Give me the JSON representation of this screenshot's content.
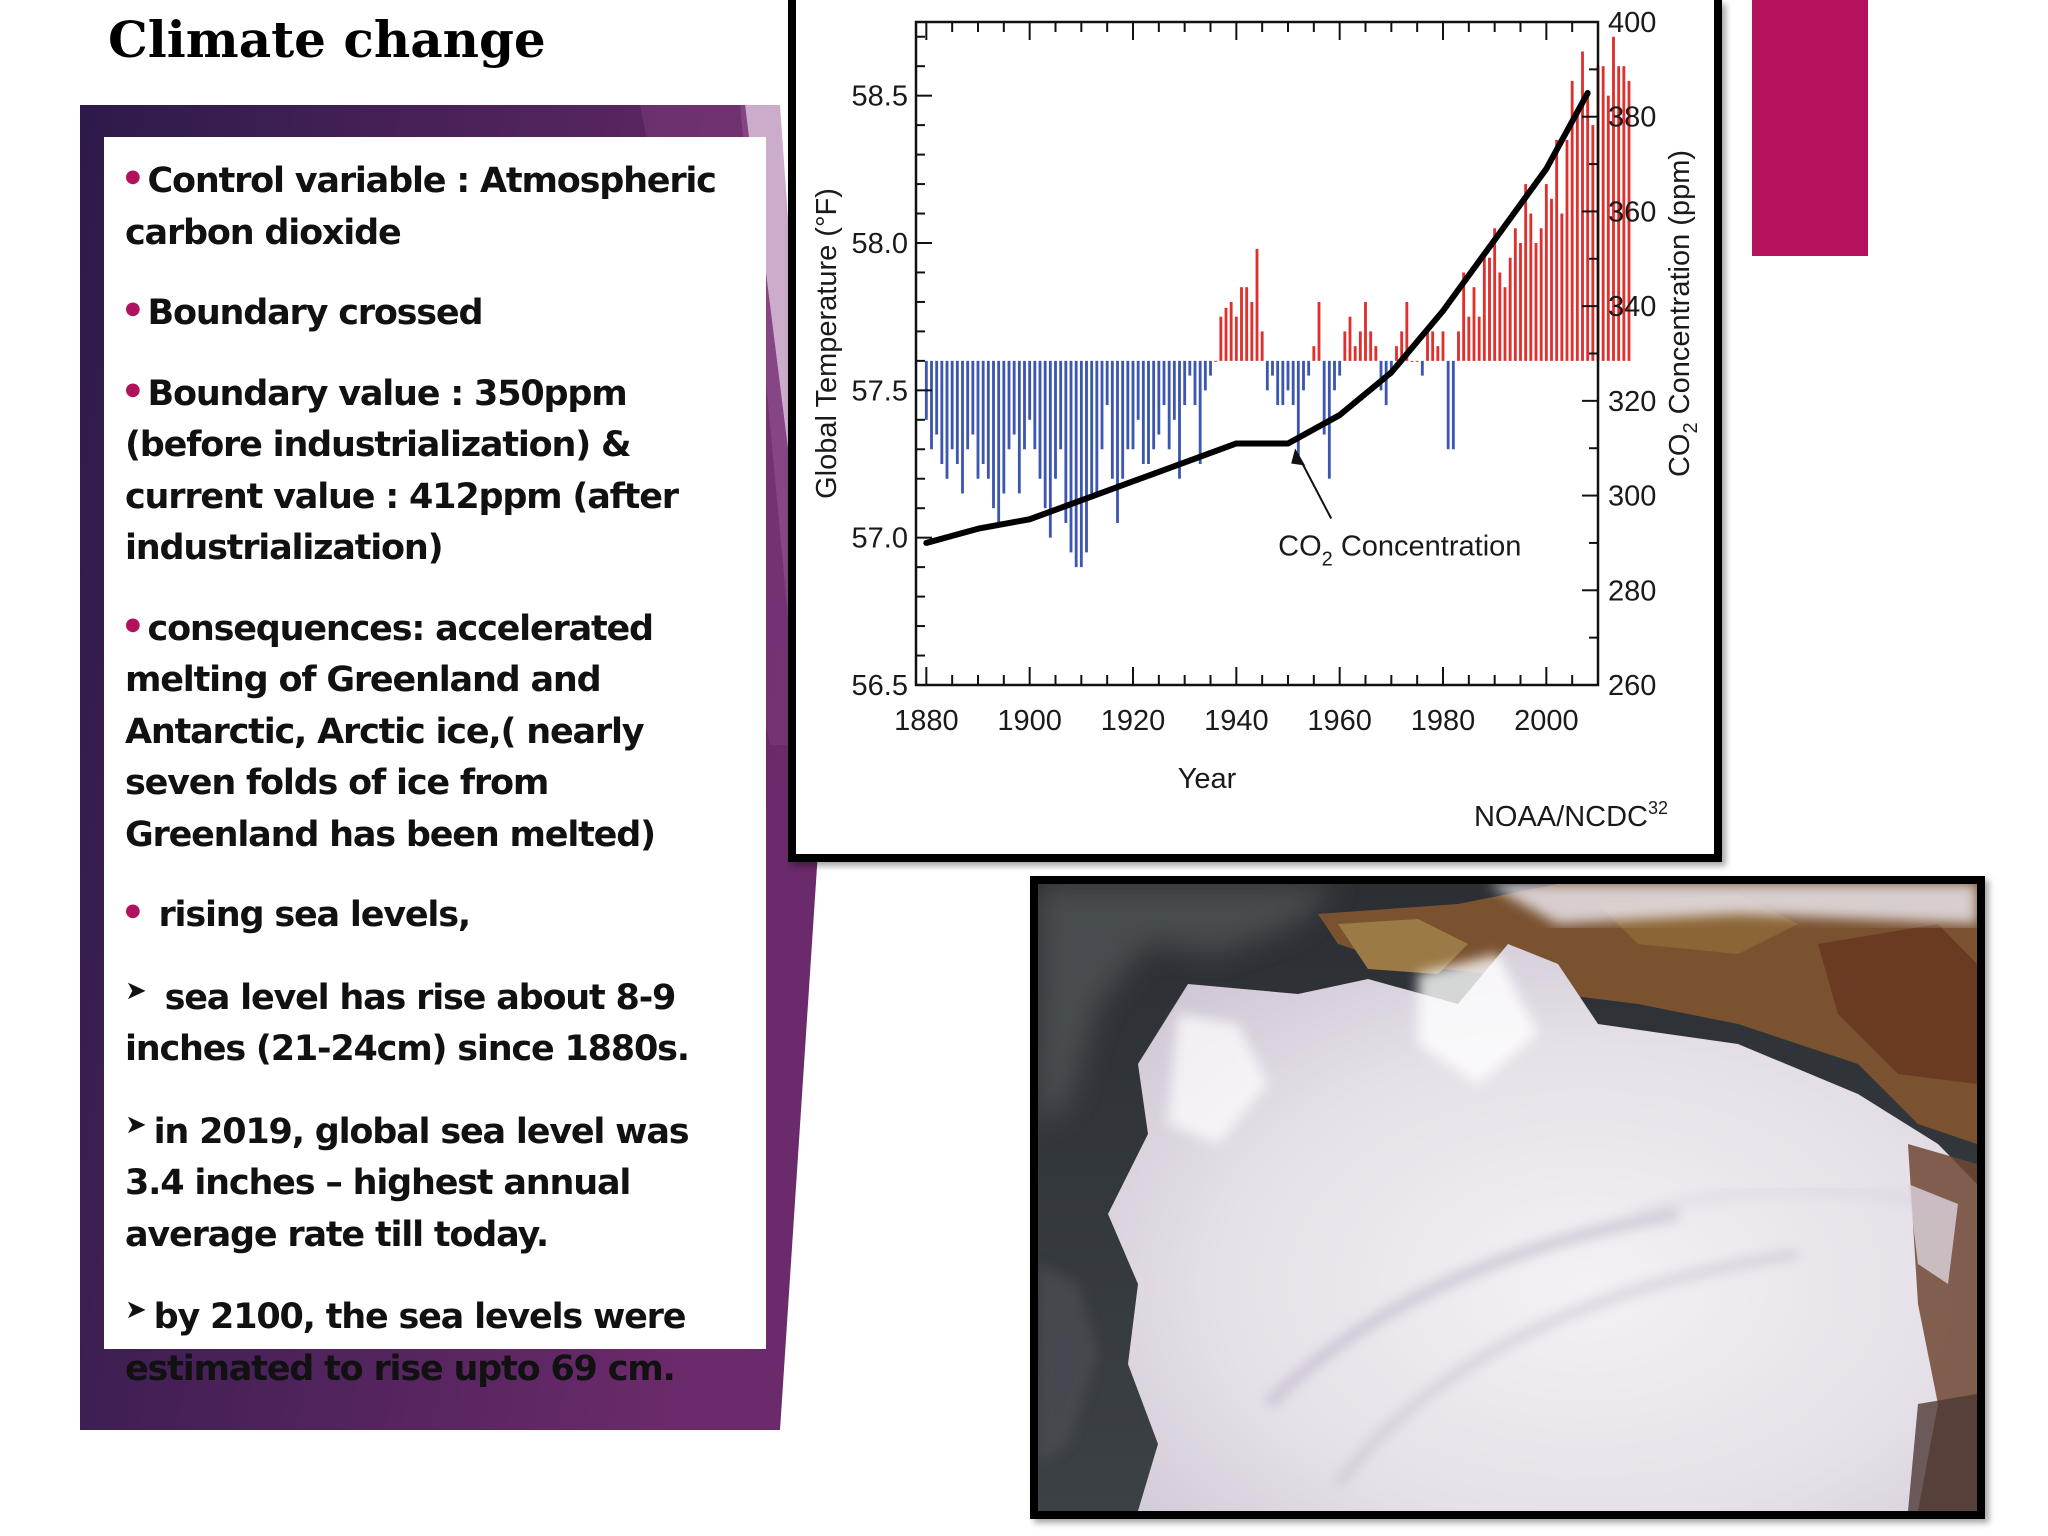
{
  "slide": {
    "title": "Climate change",
    "accent_color": "#b5125e",
    "panel_colors": [
      "#2d1a4a",
      "#6b2a6b"
    ]
  },
  "bullets": [
    {
      "marker": "dot",
      "text": "Control variable : Atmospheric carbon dioxide"
    },
    {
      "marker": "dot",
      "text": "Boundary crossed"
    },
    {
      "marker": "dot",
      "text": "Boundary value : 350ppm (before industrialization) & current value : 412ppm (after industrialization)"
    },
    {
      "marker": "dot",
      "text": "consequences: accelerated melting of Greenland and Antarctic, Arctic ice,( nearly seven folds of ice from Greenland has been melted)"
    },
    {
      "marker": "dot",
      "text": " rising sea levels,"
    },
    {
      "marker": "arrow",
      "text": " sea level has rise about 8-9 inches (21-24cm) since 1880s."
    },
    {
      "marker": "arrow",
      "text": "in 2019, global sea level was 3.4 inches – highest annual average rate till today."
    },
    {
      "marker": "arrow",
      "text": "by 2100, the sea levels were estimated to rise upto 69 cm."
    }
  ],
  "chart_data": {
    "type": "bar",
    "xlabel": "Year",
    "ylabel_left": "Global Temperature (°F)",
    "ylabel_right_prefix": "CO",
    "ylabel_right_sub": "2",
    "ylabel_right_suffix": " Concentration (ppm)",
    "xlim": [
      1878,
      2010
    ],
    "ylim_left": [
      56.5,
      58.75
    ],
    "ylim_right": [
      260,
      400
    ],
    "x_ticks": [
      1880,
      1900,
      1920,
      1940,
      1960,
      1980,
      2000
    ],
    "y_ticks_left": [
      "56.5",
      "57.0",
      "57.5",
      "58.0",
      "58.5"
    ],
    "y_ticks_right": [
      "260",
      "280",
      "300",
      "320",
      "340",
      "360",
      "380",
      "400"
    ],
    "baseline": 57.6,
    "bar_colors": {
      "above": "#e0302e",
      "below": "#3d56b0"
    },
    "series": [
      {
        "kind": "bars",
        "years_start": 1880,
        "values": [
          57.4,
          57.3,
          57.35,
          57.25,
          57.2,
          57.3,
          57.25,
          57.15,
          57.3,
          57.35,
          57.2,
          57.25,
          57.2,
          57.1,
          57.05,
          57.15,
          57.3,
          57.35,
          57.15,
          57.3,
          57.4,
          57.3,
          57.2,
          57.1,
          57.0,
          57.2,
          57.3,
          57.05,
          56.95,
          56.9,
          56.9,
          56.95,
          57.15,
          57.15,
          57.3,
          57.45,
          57.2,
          57.05,
          57.2,
          57.3,
          57.3,
          57.4,
          57.25,
          57.25,
          57.3,
          57.35,
          57.45,
          57.3,
          57.4,
          57.2,
          57.45,
          57.55,
          57.45,
          57.25,
          57.5,
          57.55,
          57.6,
          57.75,
          57.78,
          57.8,
          57.75,
          57.85,
          57.85,
          57.8,
          57.98,
          57.7,
          57.5,
          57.55,
          57.45,
          57.45,
          57.5,
          57.45,
          57.25,
          57.5,
          57.55,
          57.65,
          57.8,
          57.35,
          57.2,
          57.5,
          57.55,
          57.7,
          57.75,
          57.65,
          57.7,
          57.8,
          57.7,
          57.65,
          57.5,
          57.45,
          57.55,
          57.65,
          57.7,
          57.8,
          57.6,
          57.6,
          57.55,
          57.7,
          57.7,
          57.65,
          57.7,
          57.3,
          57.3,
          57.7,
          57.9,
          57.75,
          57.85,
          57.75,
          57.95,
          57.95,
          58.05,
          57.9,
          57.85,
          57.95,
          58.05,
          58.0,
          58.2,
          58.1,
          58.0,
          58.05,
          58.2,
          58.15,
          58.35,
          58.1,
          58.35,
          58.55,
          58.45,
          58.65,
          58.5,
          58.4,
          58.6,
          58.6,
          58.5,
          58.7,
          58.6,
          58.6,
          58.55
        ]
      },
      {
        "kind": "line",
        "name": "CO2 Concentration",
        "axis": "right",
        "points": [
          [
            1880,
            290
          ],
          [
            1890,
            293
          ],
          [
            1900,
            295
          ],
          [
            1910,
            299
          ],
          [
            1920,
            303
          ],
          [
            1930,
            307
          ],
          [
            1940,
            311
          ],
          [
            1950,
            311
          ],
          [
            1960,
            317
          ],
          [
            1970,
            326
          ],
          [
            1980,
            339
          ],
          [
            1990,
            354
          ],
          [
            2000,
            369
          ],
          [
            2008,
            385
          ]
        ]
      }
    ],
    "annotation": {
      "prefix": "CO",
      "sub": "2",
      "suffix": " Concentration",
      "points_to": [
        1951,
        311
      ]
    },
    "source_prefix": "NOAA/NCDC",
    "source_sup": "32"
  }
}
